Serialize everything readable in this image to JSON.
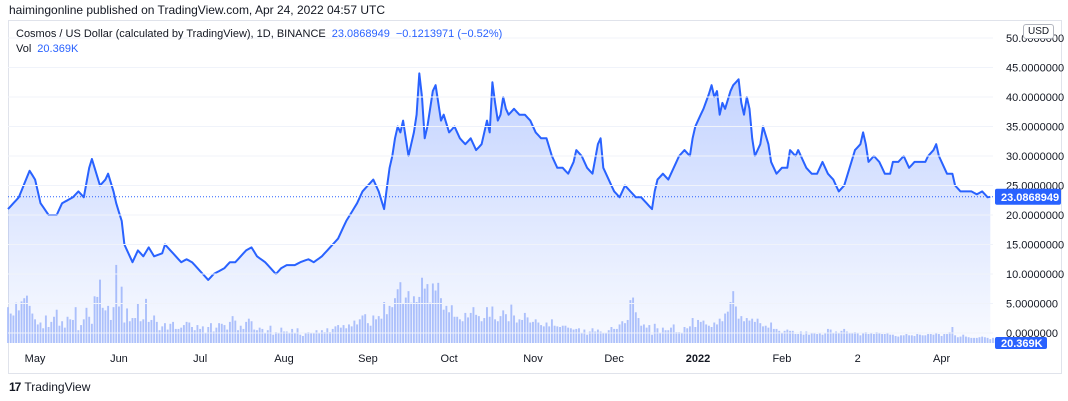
{
  "header": {
    "published_text": "haimingonline published on TradingView.com, Apr 24, 2022 04:57 UTC"
  },
  "legend": {
    "symbol": "Cosmos / US Dollar (calculated by TradingView), 1D, BINANCE",
    "last_price": "23.0868949",
    "change": "−0.1213971 (−0.52%)",
    "vol_label": "Vol",
    "vol_value": "20.369K"
  },
  "currency_button": "USD",
  "footer": {
    "logo_text": "17",
    "brand": "TradingView"
  },
  "colors": {
    "line": "#2962ff",
    "fill": "#2962ff",
    "volume": "#b3c5fb",
    "price_tag": "#2962ff"
  },
  "chart_data": {
    "type": "area",
    "title": "",
    "x_ticks": [
      {
        "label": "May",
        "index": 10
      },
      {
        "label": "Jun",
        "index": 41
      },
      {
        "label": "Jul",
        "index": 71
      },
      {
        "label": "Aug",
        "index": 102
      },
      {
        "label": "Sep",
        "index": 133
      },
      {
        "label": "Oct",
        "index": 163
      },
      {
        "label": "Nov",
        "index": 194
      },
      {
        "label": "Dec",
        "index": 224
      },
      {
        "label": "2022",
        "index": 255
      },
      {
        "label": "Feb",
        "index": 286
      },
      {
        "label": "2",
        "index": 314
      },
      {
        "label": "Apr",
        "index": 345
      }
    ],
    "y_ticks": [
      50,
      45,
      40,
      35,
      30,
      25,
      20,
      15,
      10,
      5,
      0
    ],
    "y_tick_labels": [
      "50.0000000",
      "45.0000000",
      "40.0000000",
      "35.0000000",
      "30.0000000",
      "25.0000000",
      "20.0000000",
      "15.0000000",
      "10.0000000",
      "5.0000000",
      "0.0000000"
    ],
    "ylim": [
      0,
      50
    ],
    "last_price_tag": "23.0868949",
    "last_price": 23.0868949,
    "volume_tag": "20.369K",
    "series": [
      {
        "name": "Cosmos / US Dollar",
        "anchors": [
          [
            0,
            21
          ],
          [
            4,
            23
          ],
          [
            8,
            27.5
          ],
          [
            10,
            26
          ],
          [
            12,
            22
          ],
          [
            15,
            20
          ],
          [
            18,
            20
          ],
          [
            20,
            22
          ],
          [
            24,
            23
          ],
          [
            26,
            24
          ],
          [
            28,
            23
          ],
          [
            30,
            28
          ],
          [
            31,
            29.5
          ],
          [
            32,
            28
          ],
          [
            34,
            25
          ],
          [
            36,
            26
          ],
          [
            37,
            27
          ],
          [
            39,
            24
          ],
          [
            40,
            22
          ],
          [
            42,
            19
          ],
          [
            43,
            15
          ],
          [
            45,
            13
          ],
          [
            46,
            12
          ],
          [
            48,
            14
          ],
          [
            50,
            13
          ],
          [
            52,
            14.5
          ],
          [
            54,
            13
          ],
          [
            57,
            13.5
          ],
          [
            58,
            15
          ],
          [
            60,
            14
          ],
          [
            62,
            13
          ],
          [
            64,
            12
          ],
          [
            66,
            12.5
          ],
          [
            68,
            12
          ],
          [
            70,
            11
          ],
          [
            72,
            10
          ],
          [
            74,
            9
          ],
          [
            76,
            10
          ],
          [
            78,
            10.5
          ],
          [
            80,
            11
          ],
          [
            82,
            12
          ],
          [
            84,
            12
          ],
          [
            86,
            13
          ],
          [
            88,
            14
          ],
          [
            90,
            14.5
          ],
          [
            92,
            13
          ],
          [
            95,
            12
          ],
          [
            97,
            11
          ],
          [
            99,
            10
          ],
          [
            101,
            11
          ],
          [
            103,
            11.5
          ],
          [
            106,
            11.5
          ],
          [
            108,
            12
          ],
          [
            111,
            12.5
          ],
          [
            113,
            12
          ],
          [
            116,
            13
          ],
          [
            118,
            14
          ],
          [
            120,
            15
          ],
          [
            122,
            16
          ],
          [
            124,
            18
          ],
          [
            125,
            19
          ],
          [
            127,
            20.5
          ],
          [
            129,
            22
          ],
          [
            131,
            24
          ],
          [
            133,
            25
          ],
          [
            135,
            26
          ],
          [
            137,
            24
          ],
          [
            139,
            21
          ],
          [
            141,
            28
          ],
          [
            142,
            30
          ],
          [
            143,
            33
          ],
          [
            144,
            35
          ],
          [
            145,
            34
          ],
          [
            146,
            36
          ],
          [
            147,
            33
          ],
          [
            148,
            30
          ],
          [
            150,
            34
          ],
          [
            151,
            37
          ],
          [
            152,
            44
          ],
          [
            153,
            40
          ],
          [
            154,
            33
          ],
          [
            155,
            35
          ],
          [
            156,
            38
          ],
          [
            157,
            41
          ],
          [
            158,
            42
          ],
          [
            159,
            39
          ],
          [
            160,
            36
          ],
          [
            161,
            37
          ],
          [
            163,
            34
          ],
          [
            165,
            35
          ],
          [
            167,
            33
          ],
          [
            169,
            32
          ],
          [
            171,
            33
          ],
          [
            173,
            31
          ],
          [
            175,
            32
          ],
          [
            176,
            34
          ],
          [
            177,
            36
          ],
          [
            178,
            34
          ],
          [
            179,
            42.5
          ],
          [
            180,
            39
          ],
          [
            181,
            36
          ],
          [
            182,
            37
          ],
          [
            183,
            40
          ],
          [
            184,
            38
          ],
          [
            185,
            37
          ],
          [
            187,
            38
          ],
          [
            189,
            37
          ],
          [
            191,
            37
          ],
          [
            193,
            36
          ],
          [
            195,
            34
          ],
          [
            197,
            33
          ],
          [
            199,
            33
          ],
          [
            201,
            30
          ],
          [
            203,
            28
          ],
          [
            205,
            28
          ],
          [
            207,
            27
          ],
          [
            209,
            29
          ],
          [
            210,
            31
          ],
          [
            212,
            30
          ],
          [
            214,
            28
          ],
          [
            216,
            27
          ],
          [
            218,
            32
          ],
          [
            219,
            33
          ],
          [
            220,
            28
          ],
          [
            222,
            26
          ],
          [
            224,
            24
          ],
          [
            226,
            23
          ],
          [
            228,
            25
          ],
          [
            230,
            24
          ],
          [
            232,
            23
          ],
          [
            234,
            23
          ],
          [
            236,
            22
          ],
          [
            238,
            21
          ],
          [
            239,
            24
          ],
          [
            240,
            26
          ],
          [
            242,
            27
          ],
          [
            244,
            26
          ],
          [
            246,
            28
          ],
          [
            248,
            30
          ],
          [
            250,
            31
          ],
          [
            252,
            30
          ],
          [
            253,
            33
          ],
          [
            254,
            35
          ],
          [
            255,
            36
          ],
          [
            257,
            38
          ],
          [
            259,
            40.5
          ],
          [
            260,
            42
          ],
          [
            261,
            40
          ],
          [
            262,
            41
          ],
          [
            263,
            37
          ],
          [
            264,
            39
          ],
          [
            265,
            38
          ],
          [
            267,
            41
          ],
          [
            268,
            42
          ],
          [
            270,
            43
          ],
          [
            271,
            39
          ],
          [
            272,
            37
          ],
          [
            273,
            40
          ],
          [
            274,
            38
          ],
          [
            275,
            33
          ],
          [
            276,
            30
          ],
          [
            278,
            32
          ],
          [
            279,
            35
          ],
          [
            281,
            32
          ],
          [
            282,
            29
          ],
          [
            284,
            27
          ],
          [
            286,
            28
          ],
          [
            288,
            28
          ],
          [
            289,
            31
          ],
          [
            291,
            30
          ],
          [
            292,
            31
          ],
          [
            293,
            30
          ],
          [
            295,
            28
          ],
          [
            297,
            27
          ],
          [
            299,
            27
          ],
          [
            301,
            29
          ],
          [
            303,
            27
          ],
          [
            305,
            26
          ],
          [
            307,
            24
          ],
          [
            309,
            25
          ],
          [
            311,
            28
          ],
          [
            313,
            31
          ],
          [
            315,
            32
          ],
          [
            316,
            34
          ],
          [
            317,
            32
          ],
          [
            318,
            29
          ],
          [
            320,
            30
          ],
          [
            322,
            29
          ],
          [
            324,
            27
          ],
          [
            326,
            27
          ],
          [
            327,
            29
          ],
          [
            329,
            29
          ],
          [
            331,
            30
          ],
          [
            333,
            28
          ],
          [
            335,
            29
          ],
          [
            337,
            29
          ],
          [
            339,
            29
          ],
          [
            340,
            30
          ],
          [
            342,
            31
          ],
          [
            343,
            32
          ],
          [
            344,
            30
          ],
          [
            346,
            28
          ],
          [
            347,
            27
          ],
          [
            349,
            27
          ],
          [
            350,
            25
          ],
          [
            352,
            24
          ],
          [
            354,
            24
          ],
          [
            356,
            24
          ],
          [
            358,
            23.5
          ],
          [
            360,
            24
          ],
          [
            362,
            23
          ],
          [
            363,
            23.09
          ]
        ],
        "volume": [
          5.6,
          4.6,
          4.3,
          6.3,
          5.1,
          6.5,
          7,
          7.4,
          5.8,
          4.6,
          3.7,
          2.9,
          3.2,
          2.3,
          4.3,
          2.5,
          3.3,
          4.1,
          5.2,
          2.7,
          3.4,
          2.4,
          4.1,
          3.7,
          3.6,
          5.6,
          2,
          2.8,
          3.7,
          5.5,
          4.1,
          3,
          7.3,
          7.2,
          9.9,
          5.5,
          5.1,
          5.8,
          3.6,
          5.6,
          12.2,
          5.7,
          8.8,
          3.2,
          5.4,
          3.4,
          3.9,
          3.9,
          6.1,
          3.4,
          3.7,
          6.9,
          3.3,
          3.6,
          4.3,
          3.3,
          2,
          2.6,
          3.1,
          2.1,
          3,
          3.3,
          2.2,
          2.2,
          2.4,
          2.8,
          3.3,
          3.2,
          2.5,
          2,
          2.8,
          2.2,
          2.6,
          1.6,
          2.5,
          3.1,
          1.8,
          2.4,
          3.1,
          3,
          2.8,
          2.1,
          3.3,
          4.2,
          3.5,
          2,
          2.7,
          2.2,
          3.3,
          3.8,
          3.4,
          2.1,
          2,
          2.4,
          2.2,
          1.5,
          2,
          2.7,
          1.3,
          1.7,
          1.6,
          2.4,
          1.8,
          1.8,
          1.5,
          2.2,
          1.6,
          2.3,
          1.3,
          1.1,
          1.6,
          1.7,
          1.6,
          1.6,
          2,
          1.5,
          2,
          1.7,
          2.3,
          1.7,
          2.2,
          2.6,
          2.8,
          2.4,
          2.8,
          2.3,
          2.9,
          2.6,
          3.5,
          2.9,
          3.7,
          4.3,
          4.5,
          3.1,
          2.7,
          4.3,
          3.7,
          4.2,
          3.8,
          6.4,
          4.5,
          5.8,
          5.6,
          7,
          8.4,
          9.5,
          6.2,
          7.1,
          8.1,
          6.3,
          7.3,
          6.4,
          7.2,
          10.2,
          8.5,
          9.2,
          6.3,
          9.3,
          8.2,
          9.4,
          7,
          5.2,
          5.8,
          4.8,
          5.9,
          4.1,
          4.1,
          3.7,
          3.4,
          4.7,
          4,
          4.7,
          5.6,
          4.4,
          4.2,
          3.4,
          3.9,
          5.6,
          4.1,
          5.7,
          3.7,
          3.4,
          4.2,
          5.1,
          4.5,
          3.4,
          6,
          4.3,
          3.2,
          3.7,
          3.6,
          4.7,
          4,
          3.2,
          3.3,
          3.7,
          3.2,
          2.8,
          2.6,
          3.2,
          2.6,
          3.7,
          2.7,
          2.6,
          2.5,
          2.7,
          2.7,
          2.4,
          2.3,
          2.1,
          2.2,
          2.3,
          1.6,
          2.1,
          1.3,
          1.8,
          2.3,
          1.8,
          2.1,
          1.8,
          1.5,
          1.5,
          2,
          2.5,
          2.2,
          2.2,
          2.9,
          3.4,
          3.1,
          3.6,
          6.7,
          7.1,
          4.8,
          3.9,
          2.7,
          2.9,
          2.4,
          2.8,
          1.3,
          3,
          2.3,
          1.6,
          2.4,
          2,
          2,
          2.4,
          2.9,
          1.7,
          1.7,
          1.5,
          2.5,
          2.3,
          2.6,
          3.9,
          2.5,
          3.6,
          3.3,
          3.5,
          2.9,
          2.7,
          2.5,
          3.2,
          2.9,
          3.8,
          3.4,
          4.6,
          4.9,
          6.4,
          8.1,
          5.7,
          3.8,
          4.2,
          3.4,
          3.9,
          3.5,
          3.8,
          3.3,
          3.8,
          3.1,
          2.6,
          2.7,
          2.4,
          3.2,
          2.2,
          2.2,
          1.9,
          1.6,
          1.9,
          2.1,
          1.9,
          1.9,
          1.4,
          1.4,
          1.8,
          1.3,
          1.8,
          1.3,
          1.6,
          1.6,
          1.4,
          1.5,
          1.3,
          1.6,
          2.2,
          2.1,
          1.6,
          1.8,
          1.6,
          1.9,
          2.2,
          1.8,
          1.6,
          1.5,
          1.7,
          1.5,
          1.2,
          1.5,
          1.7,
          1.4,
          1.6,
          1.4,
          1.7,
          1.6,
          1.4,
          1.4,
          1.6,
          1.3,
          1.3,
          1.1,
          1,
          1.2,
          1.2,
          1.4,
          1.2,
          1.2,
          1.1,
          1.4,
          1.3,
          1.2,
          1.2,
          1.4,
          1.4,
          1.3,
          1.6,
          1.4,
          1.1,
          1.4,
          1.4,
          1.7,
          2.5,
          1.2,
          0.9,
          1,
          1.3,
          1,
          0.9,
          0.8,
          0.8,
          0.8,
          0.9,
          1,
          0.9,
          0.8,
          0.6,
          0.8,
          0.6,
          0.6,
          0.5,
          0.4,
          0.5,
          0.4,
          0.3
        ]
      }
    ]
  }
}
